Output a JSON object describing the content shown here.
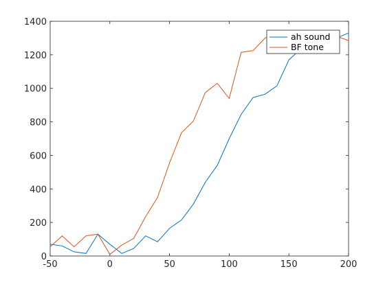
{
  "chart_data": {
    "type": "line",
    "title": "",
    "xlabel": "",
    "ylabel": "",
    "xlim": [
      -50,
      200
    ],
    "ylim": [
      0,
      1400
    ],
    "x_ticks": [
      -50,
      0,
      50,
      100,
      150,
      200
    ],
    "y_ticks": [
      0,
      200,
      400,
      600,
      800,
      1000,
      1200,
      1400
    ],
    "grid": false,
    "legend_position": "top-right",
    "series": [
      {
        "name": "ah sound",
        "color": "#0072BD",
        "x": [
          -50,
          -40,
          -30,
          -20,
          -10,
          0,
          10,
          20,
          30,
          40,
          50,
          60,
          70,
          80,
          90,
          100,
          110,
          120,
          130,
          140,
          150,
          160,
          170,
          180,
          190,
          200
        ],
        "y": [
          70,
          60,
          25,
          15,
          130,
          70,
          15,
          45,
          120,
          85,
          165,
          215,
          310,
          440,
          540,
          700,
          845,
          945,
          965,
          1015,
          1170,
          1235,
          1260,
          1285,
          1300,
          1330
        ]
      },
      {
        "name": "BF tone",
        "color": "#D95319",
        "x": [
          -50,
          -40,
          -30,
          -20,
          -10,
          0,
          10,
          20,
          30,
          40,
          50,
          60,
          70,
          80,
          90,
          100,
          110,
          120,
          130,
          140,
          150,
          160,
          170,
          180,
          190,
          200
        ],
        "y": [
          55,
          120,
          55,
          120,
          130,
          10,
          65,
          105,
          235,
          350,
          555,
          735,
          805,
          975,
          1030,
          940,
          1215,
          1225,
          1300,
          1330,
          1340,
          1335,
          1320,
          1305,
          1310,
          1285
        ]
      }
    ]
  }
}
